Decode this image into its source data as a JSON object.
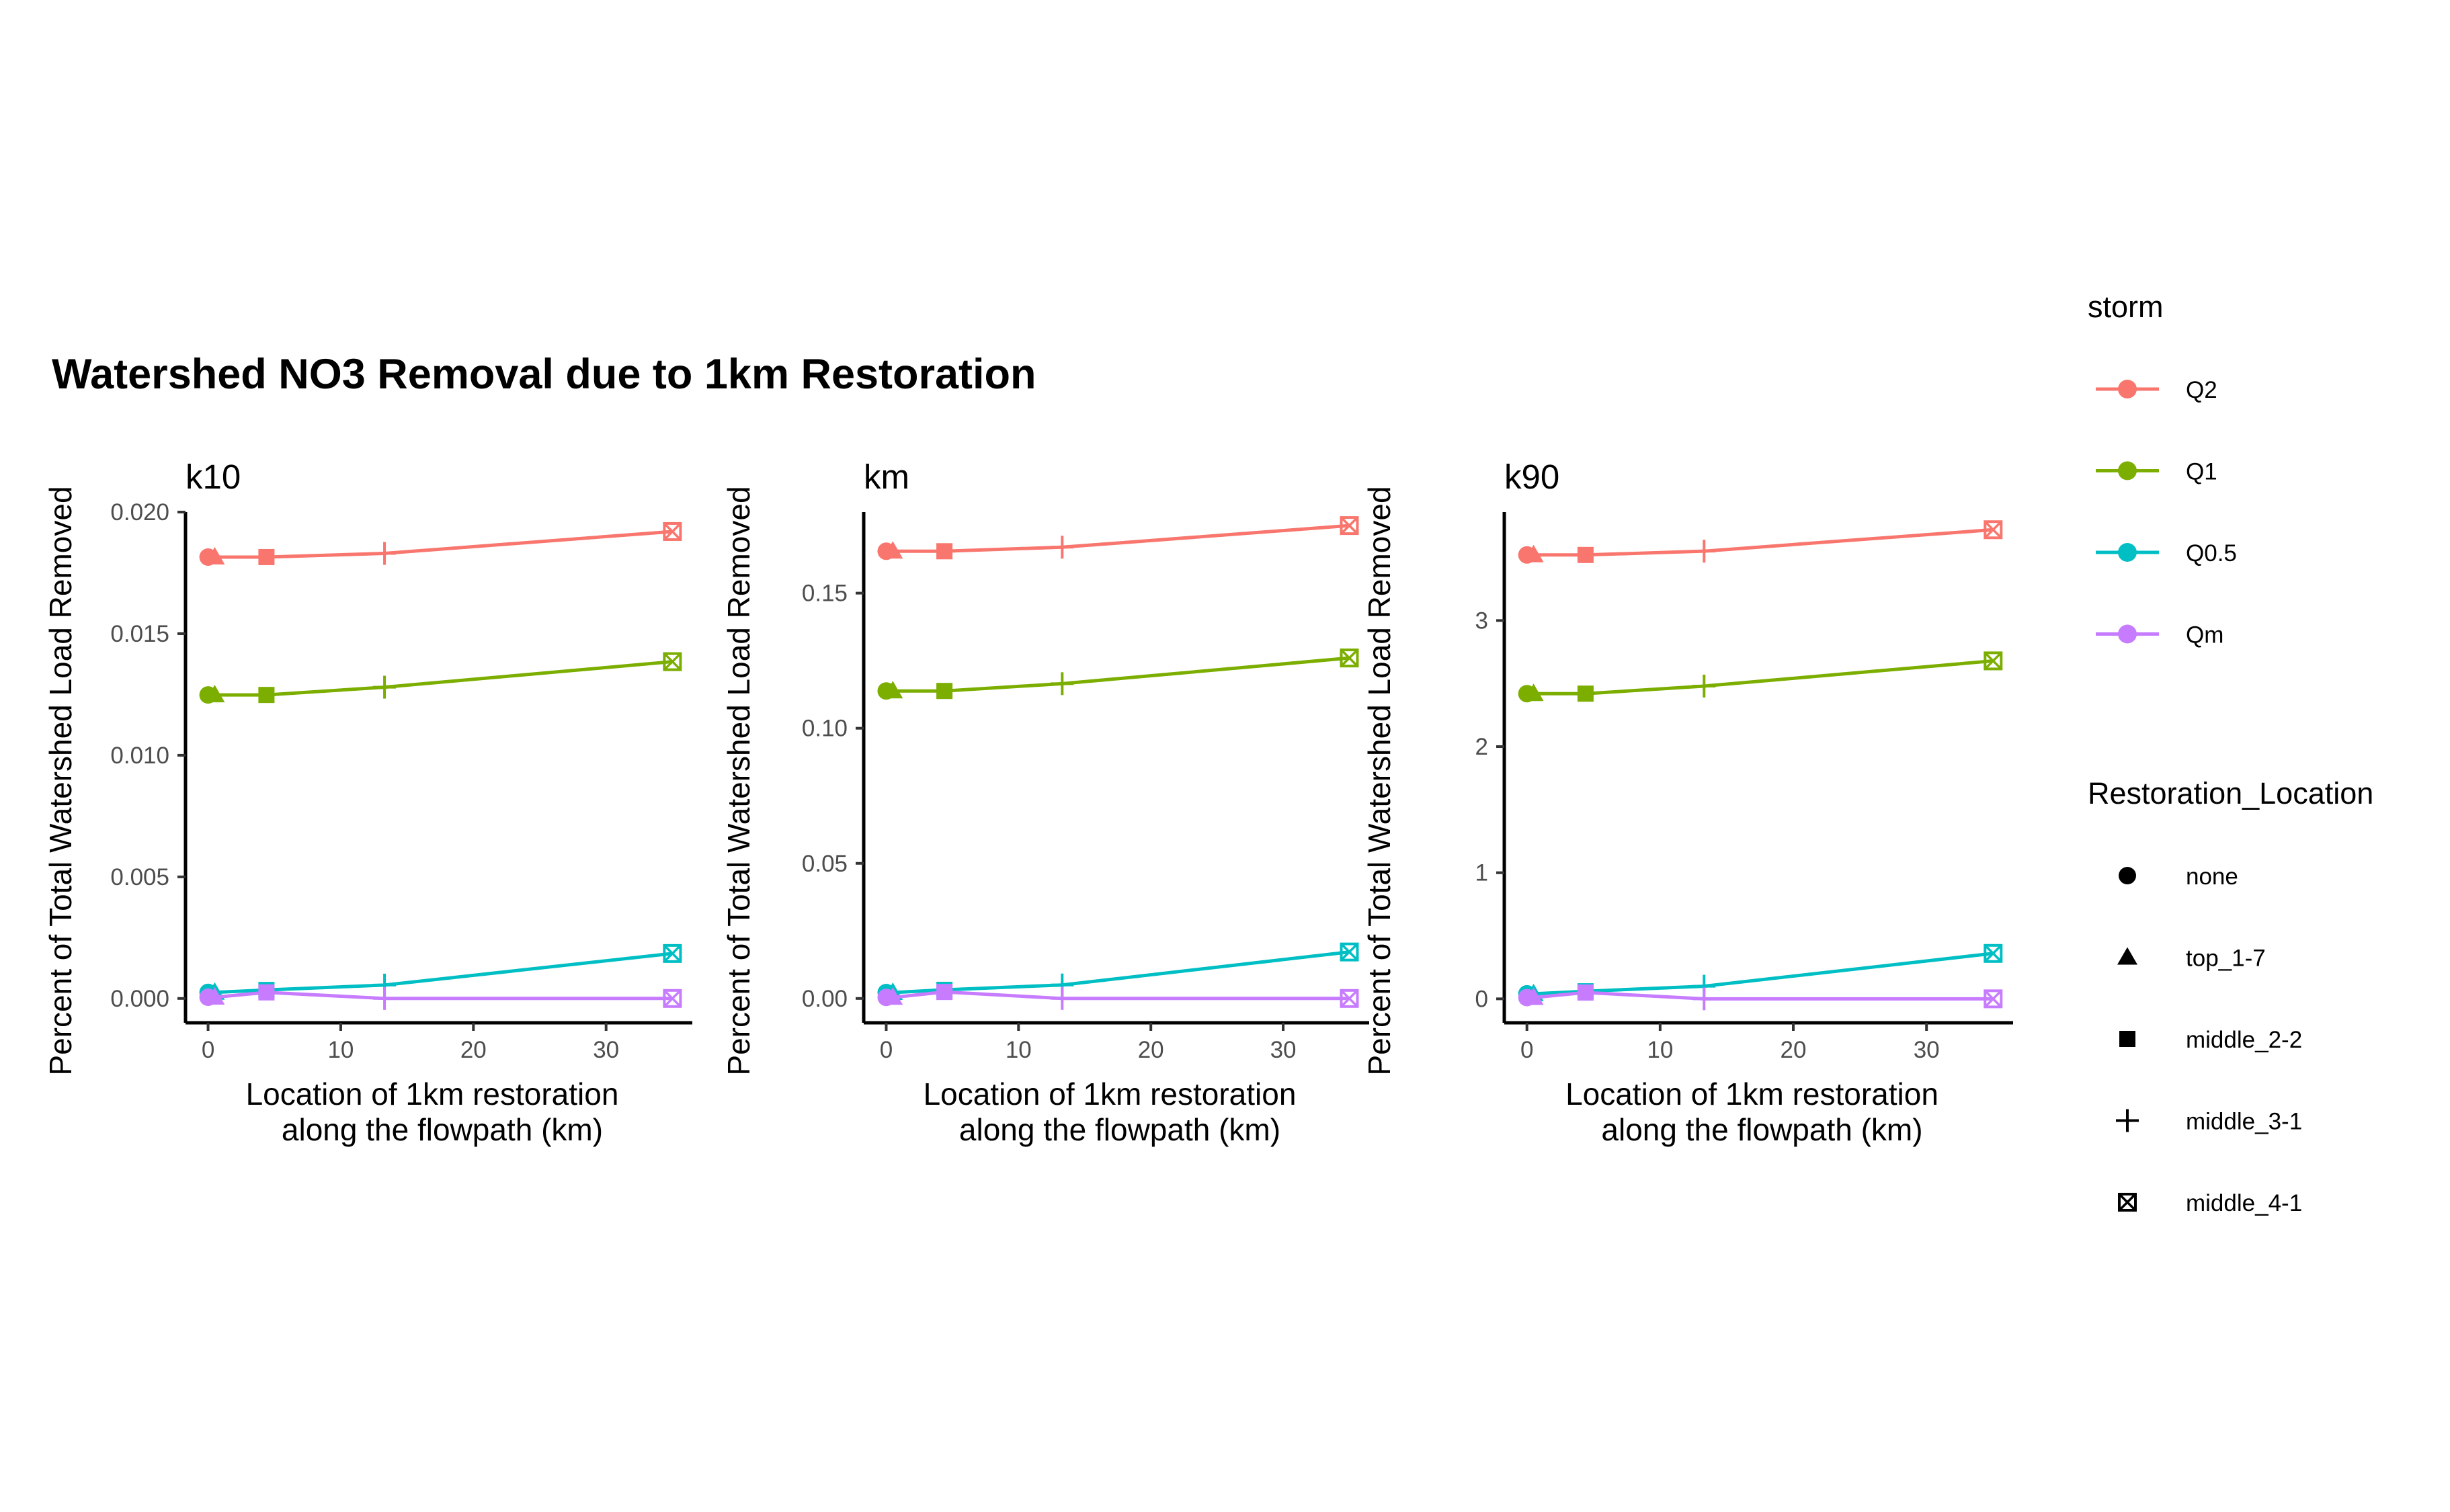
{
  "title": "Watershed NO3 Removal due to 1km Restoration",
  "legend": {
    "storm_title": "storm",
    "storm_items": [
      {
        "label": "Q2",
        "color": "#F8766D"
      },
      {
        "label": "Q1",
        "color": "#7CAE00"
      },
      {
        "label": "Q0.5",
        "color": "#00BFC4"
      },
      {
        "label": "Qm",
        "color": "#C77CFF"
      }
    ],
    "location_title": "Restoration_Location",
    "location_items": [
      {
        "label": "none",
        "shape": "circle"
      },
      {
        "label": "top_1-7",
        "shape": "triangle"
      },
      {
        "label": "middle_2-2",
        "shape": "square"
      },
      {
        "label": "middle_3-1",
        "shape": "plus"
      },
      {
        "label": "middle_4-1",
        "shape": "boxed-x"
      }
    ]
  },
  "chart_data": [
    {
      "type": "line",
      "panel": "k10",
      "xlabel": "Location of 1km restoration\nalong the flowpath (km)",
      "ylabel": "Percent of Total Watershed Load Removed",
      "xlim": [
        -1.7,
        36.5
      ],
      "ylim": [
        -0.001,
        0.02
      ],
      "xticks": [
        {
          "v": 0,
          "label": "0"
        },
        {
          "v": 10,
          "label": "10"
        },
        {
          "v": 20,
          "label": "20"
        },
        {
          "v": 30,
          "label": "30"
        }
      ],
      "yticks": [
        {
          "v": 0,
          "label": "0.000"
        },
        {
          "v": 0.005,
          "label": "0.005"
        },
        {
          "v": 0.01,
          "label": "0.010"
        },
        {
          "v": 0.015,
          "label": "0.015"
        },
        {
          "v": 0.02,
          "label": "0.020"
        }
      ],
      "x": [
        0,
        0.5,
        4.4,
        13.3,
        35
      ],
      "shapes": [
        "circle",
        "triangle",
        "square",
        "plus",
        "boxed-x"
      ],
      "series": [
        {
          "name": "Q2",
          "values": [
            0.01815,
            0.01815,
            0.01815,
            0.0183,
            0.0192
          ]
        },
        {
          "name": "Q1",
          "values": [
            0.01248,
            0.01248,
            0.01248,
            0.0128,
            0.01385
          ]
        },
        {
          "name": "Q0.5",
          "values": [
            0.00025,
            0.00025,
            0.00035,
            0.00055,
            0.00185
          ]
        },
        {
          "name": "Qm",
          "values": [
            5e-05,
            5e-05,
            0.00025,
            0.0,
            0.0
          ]
        }
      ]
    },
    {
      "type": "line",
      "panel": "km",
      "xlabel": "Location of 1km restoration\nalong the flowpath (km)",
      "ylabel": "Percent of Total Watershed Load Removed",
      "xlim": [
        -1.7,
        36.5
      ],
      "ylim": [
        -0.009,
        0.18
      ],
      "xticks": [
        {
          "v": 0,
          "label": "0"
        },
        {
          "v": 10,
          "label": "10"
        },
        {
          "v": 20,
          "label": "20"
        },
        {
          "v": 30,
          "label": "30"
        }
      ],
      "yticks": [
        {
          "v": 0,
          "label": "0.00"
        },
        {
          "v": 0.05,
          "label": "0.05"
        },
        {
          "v": 0.1,
          "label": "0.10"
        },
        {
          "v": 0.15,
          "label": "0.15"
        }
      ],
      "x": [
        0,
        0.5,
        4.4,
        13.3,
        35
      ],
      "shapes": [
        "circle",
        "triangle",
        "square",
        "plus",
        "boxed-x"
      ],
      "series": [
        {
          "name": "Q2",
          "values": [
            0.1655,
            0.1655,
            0.1655,
            0.167,
            0.175
          ]
        },
        {
          "name": "Q1",
          "values": [
            0.1138,
            0.1138,
            0.1138,
            0.1165,
            0.126
          ]
        },
        {
          "name": "Q0.5",
          "values": [
            0.0022,
            0.0022,
            0.0032,
            0.005,
            0.0172
          ]
        },
        {
          "name": "Qm",
          "values": [
            0.0004,
            0.0004,
            0.0024,
            0.0,
            0.0
          ]
        }
      ]
    },
    {
      "type": "line",
      "panel": "k90",
      "xlabel": "Location of 1km restoration\nalong the flowpath (km)",
      "ylabel": "Percent of Total Watershed Load Removed",
      "xlim": [
        -1.7,
        36.5
      ],
      "ylim": [
        -0.19,
        3.86
      ],
      "xticks": [
        {
          "v": 0,
          "label": "0"
        },
        {
          "v": 10,
          "label": "10"
        },
        {
          "v": 20,
          "label": "20"
        },
        {
          "v": 30,
          "label": "30"
        }
      ],
      "yticks": [
        {
          "v": 0,
          "label": "0"
        },
        {
          "v": 1,
          "label": "1"
        },
        {
          "v": 2,
          "label": "2"
        },
        {
          "v": 3,
          "label": "3"
        }
      ],
      "x": [
        0,
        0.5,
        4.4,
        13.3,
        35
      ],
      "shapes": [
        "circle",
        "triangle",
        "square",
        "plus",
        "boxed-x"
      ],
      "series": [
        {
          "name": "Q2",
          "values": [
            3.52,
            3.52,
            3.52,
            3.55,
            3.72
          ]
        },
        {
          "name": "Q1",
          "values": [
            2.42,
            2.42,
            2.42,
            2.48,
            2.68
          ]
        },
        {
          "name": "Q0.5",
          "values": [
            0.04,
            0.04,
            0.06,
            0.1,
            0.36
          ]
        },
        {
          "name": "Qm",
          "values": [
            0.01,
            0.01,
            0.05,
            0.0,
            0.0
          ]
        }
      ]
    }
  ]
}
